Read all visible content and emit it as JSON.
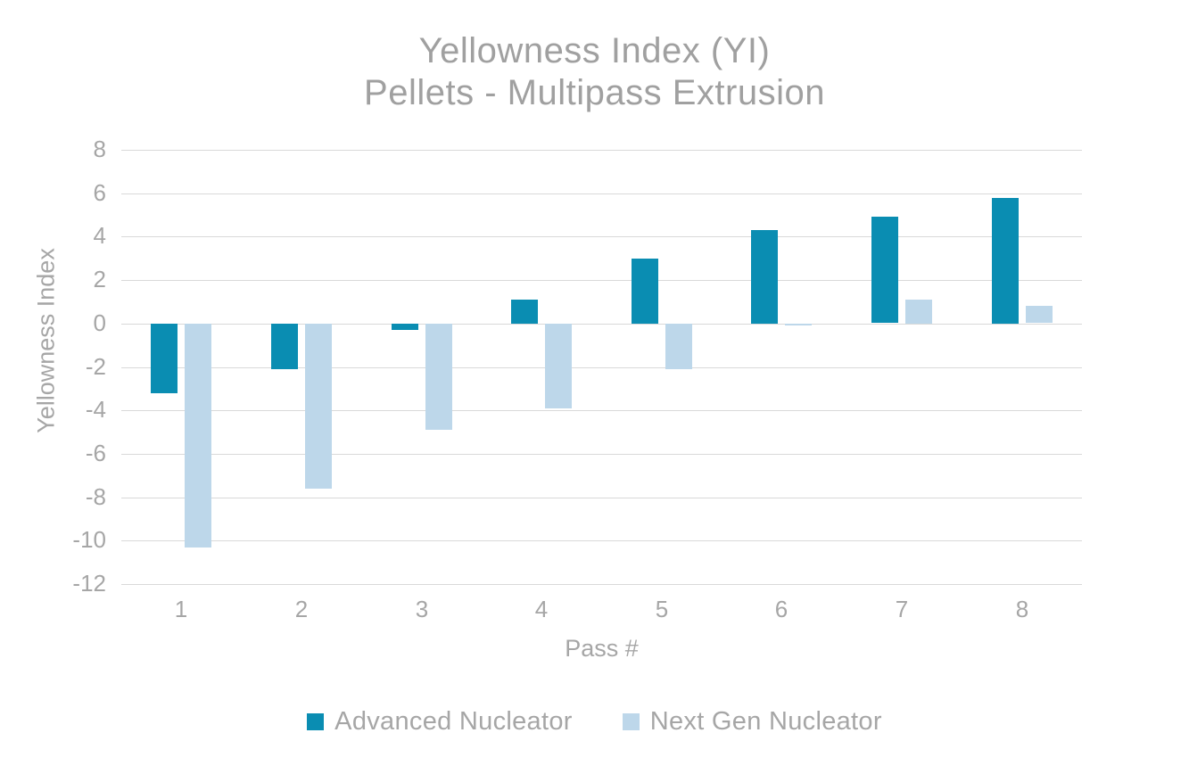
{
  "title": {
    "line1": "Yellowness Index (YI)",
    "line2": "Pellets - Multipass Extrusion"
  },
  "chart_data": {
    "type": "bar",
    "title": "Yellowness Index (YI) Pellets - Multipass Extrusion",
    "categories": [
      "1",
      "2",
      "3",
      "4",
      "5",
      "6",
      "7",
      "8"
    ],
    "series": [
      {
        "name": "Advanced Nucleator",
        "color": "#0a8db2",
        "values": [
          -3.2,
          -2.1,
          -0.3,
          1.1,
          3.0,
          4.3,
          4.9,
          5.8
        ]
      },
      {
        "name": "Next Gen Nucleator",
        "color": "#bdd7ea",
        "values": [
          -10.3,
          -7.6,
          -4.9,
          -3.9,
          -2.1,
          -0.1,
          1.1,
          0.8
        ]
      }
    ],
    "xlabel": "Pass #",
    "ylabel": "Yellowness Index",
    "ylim": [
      -12,
      8
    ],
    "ytick_step": 2,
    "grid": true,
    "legend_position": "bottom"
  },
  "colors": {
    "background": "#ffffff",
    "gridline": "#d9d9d9",
    "tick_text": "#a6a6a6",
    "title_text": "#a0a0a0",
    "series1": "#0a8db2",
    "series2": "#bdd7ea"
  }
}
